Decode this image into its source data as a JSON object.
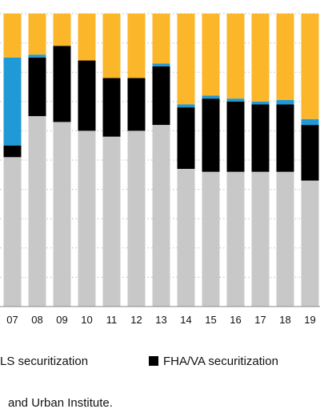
{
  "chart_data": {
    "type": "bar",
    "stacked": true,
    "categories": [
      "07",
      "08",
      "09",
      "10",
      "11",
      "12",
      "13",
      "14",
      "15",
      "16",
      "17",
      "18",
      "19"
    ],
    "ylim": [
      0,
      100
    ],
    "grid": true,
    "legend_position": "bottom",
    "series": [
      {
        "name": "",
        "color": "#c8c8c8",
        "values": [
          51,
          65,
          63,
          60,
          58,
          60,
          62,
          47,
          46,
          46,
          46,
          46,
          43
        ]
      },
      {
        "name": "FHA/VA securitization",
        "color": "#000000",
        "values": [
          4,
          20,
          26,
          24,
          20,
          18,
          20,
          21,
          25,
          24,
          23,
          23,
          19
        ]
      },
      {
        "name": "",
        "color": "#1f9ad6",
        "values": [
          30,
          1,
          0,
          0,
          0,
          0,
          1,
          1,
          1,
          1,
          1,
          1.5,
          2
        ]
      },
      {
        "name": "",
        "color": "#fbb62a",
        "values": [
          15,
          14,
          11,
          16,
          22,
          22,
          17,
          31,
          28,
          29,
          30,
          29.5,
          36
        ]
      }
    ]
  },
  "legend": {
    "partial_label": "LS securitization",
    "fha_label": "FHA/VA securitization"
  },
  "source_text": "and Urban Institute."
}
